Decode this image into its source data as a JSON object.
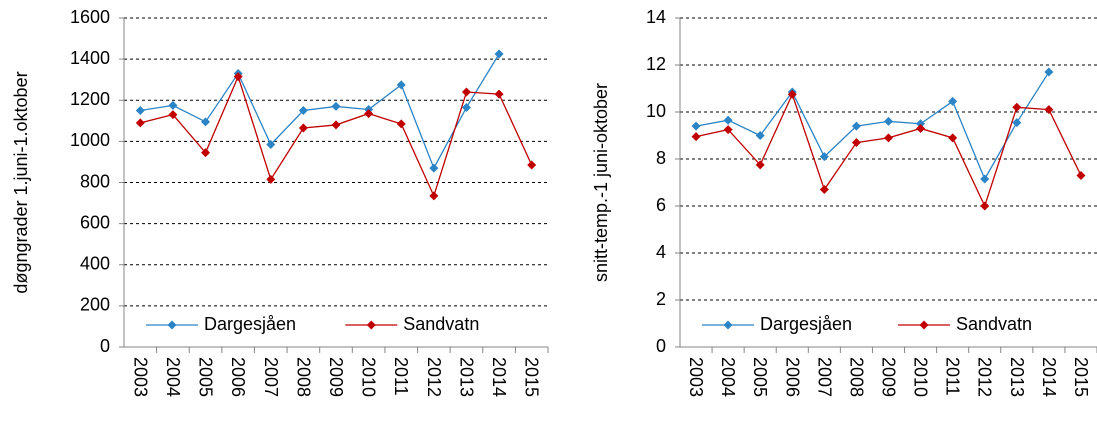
{
  "chart_data": [
    {
      "type": "line",
      "y_label": "døgngrader 1.juni-1.oktober",
      "categories": [
        "2003",
        "2004",
        "2005",
        "2006",
        "2007",
        "2008",
        "2009",
        "2010",
        "2011",
        "2012",
        "2013",
        "2014",
        "2015"
      ],
      "series": [
        {
          "name": "Dargesjåen",
          "color": "#2b84c6",
          "values": [
            1150,
            1175,
            1095,
            1330,
            985,
            1150,
            1170,
            1155,
            1275,
            870,
            1165,
            1425,
            null
          ]
        },
        {
          "name": "Sandvatn",
          "color": "#c00000",
          "values": [
            1090,
            1130,
            945,
            1315,
            815,
            1065,
            1080,
            1135,
            1085,
            735,
            1240,
            1230,
            885
          ]
        }
      ],
      "ylim": [
        0,
        1600
      ],
      "yticks": [
        0,
        200,
        400,
        600,
        800,
        1000,
        1200,
        1400,
        1600
      ],
      "grid": true,
      "legend": "bottom"
    },
    {
      "type": "line",
      "y_label": "snitt-temp.-1 juni-oktober",
      "categories": [
        "2003",
        "2004",
        "2005",
        "2006",
        "2007",
        "2008",
        "2009",
        "2010",
        "2011",
        "2012",
        "2013",
        "2014",
        "2015"
      ],
      "series": [
        {
          "name": "Dargesjåen",
          "color": "#2b84c6",
          "values": [
            9.4,
            9.65,
            9.0,
            10.85,
            8.1,
            9.4,
            9.6,
            9.5,
            10.45,
            7.15,
            9.55,
            11.7,
            null
          ]
        },
        {
          "name": "Sandvatn",
          "color": "#c00000",
          "values": [
            8.95,
            9.25,
            7.75,
            10.75,
            6.7,
            8.7,
            8.9,
            9.3,
            8.9,
            6.0,
            10.2,
            10.1,
            7.3
          ]
        }
      ],
      "ylim": [
        0,
        14
      ],
      "yticks": [
        0,
        2,
        4,
        6,
        8,
        10,
        12,
        14
      ],
      "grid": true,
      "legend": "bottom"
    }
  ]
}
